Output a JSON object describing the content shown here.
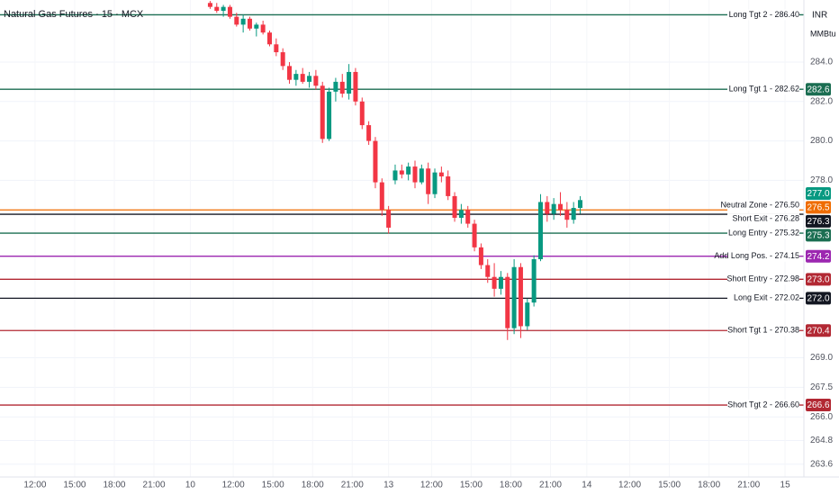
{
  "chart_data": {
    "type": "candlestick",
    "title": "Natural Gas Futures · 15 · MCX",
    "currency": "INR",
    "unit": "MMBtu",
    "up_color": "#089981",
    "down_color": "#f23645",
    "grid": true,
    "xlim": [
      -10.6,
      232.7
    ],
    "ylim": [
      262.95,
      287.15
    ],
    "xticks": [
      {
        "value": 0,
        "label": "12:00"
      },
      {
        "value": 12,
        "label": "15:00"
      },
      {
        "value": 24,
        "label": "18:00"
      },
      {
        "value": 36,
        "label": "21:00"
      },
      {
        "value": 47,
        "label": "10"
      },
      {
        "value": 60,
        "label": "12:00"
      },
      {
        "value": 72,
        "label": "15:00"
      },
      {
        "value": 84,
        "label": "18:00"
      },
      {
        "value": 96,
        "label": "21:00"
      },
      {
        "value": 107,
        "label": "13"
      },
      {
        "value": 120,
        "label": "12:00"
      },
      {
        "value": 132,
        "label": "15:00"
      },
      {
        "value": 144,
        "label": "18:00"
      },
      {
        "value": 156,
        "label": "21:00"
      },
      {
        "value": 167,
        "label": "14"
      },
      {
        "value": 180,
        "label": "12:00"
      },
      {
        "value": 192,
        "label": "15:00"
      },
      {
        "value": 204,
        "label": "18:00"
      },
      {
        "value": 216,
        "label": "21:00"
      },
      {
        "value": 227,
        "label": "15"
      }
    ],
    "yticks": [
      {
        "value": 284,
        "label": "284.0"
      },
      {
        "value": 282,
        "label": "282.0"
      },
      {
        "value": 280,
        "label": "280.0"
      },
      {
        "value": 278,
        "label": "278.0"
      },
      {
        "value": 269,
        "label": "269.0"
      },
      {
        "value": 267.5,
        "label": "267.5"
      },
      {
        "value": 266,
        "label": "266.0"
      },
      {
        "value": 264.8,
        "label": "264.8"
      },
      {
        "value": 263.6,
        "label": "263.6"
      }
    ],
    "x": [
      53,
      55,
      57,
      59,
      61,
      63,
      65,
      67,
      69,
      71,
      73,
      75,
      77,
      79,
      81,
      83,
      85,
      87,
      89,
      91,
      93,
      95,
      97,
      99,
      101,
      103,
      105,
      107,
      109,
      111,
      113,
      115,
      117,
      119,
      121,
      123,
      125,
      127,
      129,
      131,
      133,
      135,
      137,
      139,
      141,
      143,
      145,
      147,
      149,
      151,
      153,
      155,
      157,
      159,
      161,
      163,
      165
    ],
    "open": [
      287.0,
      286.8,
      286.6,
      286.8,
      286.3,
      285.9,
      286.2,
      285.7,
      285.9,
      285.5,
      284.9,
      284.5,
      283.8,
      283.1,
      283.4,
      283.0,
      283.3,
      282.8,
      280.1,
      282.5,
      283.0,
      282.4,
      283.5,
      282.0,
      280.8,
      280.0,
      277.9,
      276.5,
      278.0,
      278.5,
      278.3,
      278.7,
      277.9,
      278.6,
      277.3,
      278.4,
      278.2,
      277.2,
      276.1,
      276.5,
      275.8,
      274.6,
      273.7,
      273.1,
      272.5,
      273.1,
      270.5,
      273.6,
      270.6,
      271.8,
      274.0,
      276.9,
      276.3,
      276.8,
      276.5,
      276.0,
      276.6
    ],
    "high": [
      287.1,
      287.0,
      286.9,
      286.9,
      286.5,
      286.4,
      286.3,
      286.0,
      286.1,
      285.6,
      285.2,
      284.7,
      284.0,
      283.6,
      283.7,
      283.5,
      283.6,
      283.0,
      282.7,
      283.2,
      283.4,
      283.9,
      283.7,
      282.2,
      281.0,
      280.2,
      278.1,
      276.7,
      278.8,
      278.8,
      278.9,
      279.0,
      278.8,
      278.9,
      278.6,
      278.7,
      278.5,
      277.4,
      276.8,
      276.7,
      276.0,
      274.8,
      274.0,
      273.8,
      273.4,
      273.3,
      274.0,
      273.8,
      272.0,
      274.2,
      277.3,
      277.2,
      277.1,
      277.4,
      276.9,
      276.9,
      277.2
    ],
    "low": [
      286.7,
      286.5,
      286.3,
      286.2,
      285.8,
      285.5,
      285.6,
      285.3,
      285.4,
      284.8,
      284.3,
      283.6,
      282.9,
      282.8,
      282.9,
      282.7,
      282.6,
      279.9,
      280.0,
      282.0,
      282.2,
      282.1,
      281.8,
      280.6,
      279.8,
      277.6,
      276.2,
      275.3,
      277.8,
      278.1,
      278.0,
      277.6,
      277.8,
      276.8,
      277.1,
      277.9,
      277.0,
      275.9,
      275.8,
      275.6,
      274.4,
      273.5,
      272.8,
      272.1,
      272.2,
      269.9,
      270.2,
      270.0,
      270.4,
      271.6,
      273.9,
      275.9,
      276.0,
      276.2,
      275.6,
      275.8,
      276.3
    ],
    "close": [
      286.8,
      286.6,
      286.8,
      286.3,
      285.9,
      286.2,
      285.7,
      285.9,
      285.5,
      284.9,
      284.5,
      283.8,
      283.1,
      283.4,
      283.0,
      283.3,
      282.8,
      280.1,
      282.5,
      283.0,
      282.4,
      283.5,
      282.0,
      280.8,
      280.0,
      277.9,
      276.5,
      275.6,
      278.5,
      278.3,
      278.7,
      277.9,
      278.6,
      277.3,
      278.4,
      278.2,
      277.2,
      276.1,
      276.5,
      275.8,
      274.6,
      273.7,
      273.1,
      272.5,
      273.1,
      270.5,
      273.6,
      270.6,
      271.8,
      274.0,
      276.9,
      276.3,
      276.8,
      276.5,
      276.0,
      276.6,
      277.0
    ],
    "last_price": {
      "value": 277.0,
      "label": "277.0",
      "color": "#089981"
    },
    "levels": [
      {
        "name": "Long Tgt 2 - 286.40",
        "value": 286.4,
        "color": "#1b6e52"
      },
      {
        "name": "Long Tgt 1 - 282.62",
        "value": 282.62,
        "label": "282.6",
        "color": "#1b6e52"
      },
      {
        "name": "Neutral Zone - 276.50",
        "value": 276.5,
        "label": "276.5",
        "color": "#ef6c00"
      },
      {
        "name": "Short Exit - 276.28",
        "value": 276.28,
        "label": "276.3",
        "color": "#131722"
      },
      {
        "name": "Long Entry - 275.32",
        "value": 275.32,
        "label": "275.3",
        "color": "#1b6e52"
      },
      {
        "name": "Add Long Pos. - 274.15",
        "value": 274.15,
        "label": "274.2",
        "color": "#9c27b0"
      },
      {
        "name": "Short Entry - 272.98",
        "value": 272.98,
        "label": "273.0",
        "color": "#b22833"
      },
      {
        "name": "Long Exit - 272.02",
        "value": 272.02,
        "label": "272.0",
        "color": "#131722"
      },
      {
        "name": "Short Tgt 1 - 270.38",
        "value": 270.38,
        "label": "270.4",
        "color": "#b22833"
      },
      {
        "name": "Short Tgt 2 - 266.60",
        "value": 266.6,
        "label": "266.6",
        "color": "#b22833"
      }
    ]
  }
}
